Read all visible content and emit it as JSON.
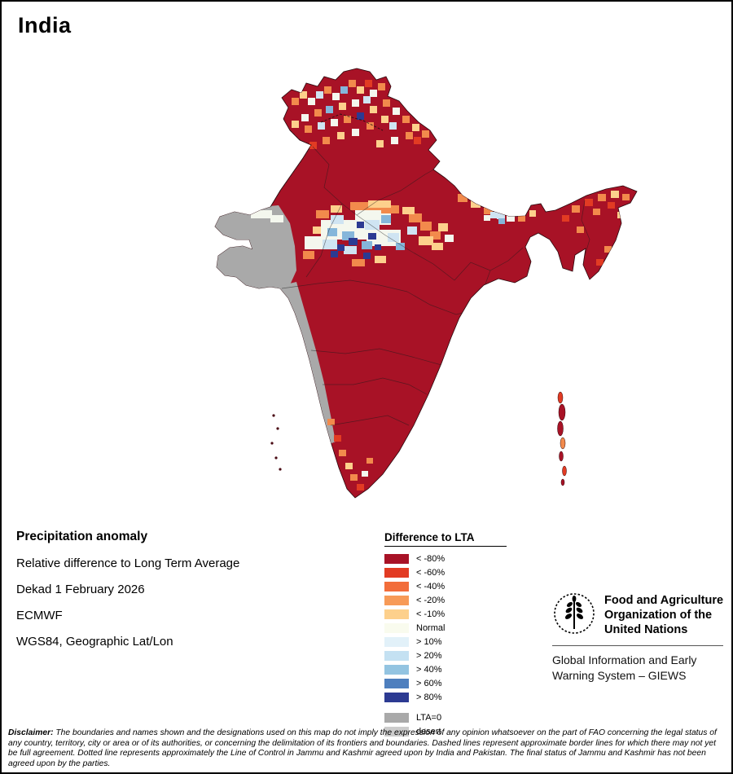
{
  "page": {
    "title": "India"
  },
  "info": {
    "heading": "Precipitation anomaly",
    "lines": [
      "Relative difference to Long Term Average",
      "Dekad 1 February 2026",
      "ECMWF",
      "WGS84, Geographic Lat/Lon"
    ]
  },
  "legend": {
    "title": "Difference to LTA",
    "items": [
      {
        "label": "< -80%",
        "color": "#a81226"
      },
      {
        "label": "< -60%",
        "color": "#e23b23"
      },
      {
        "label": "< -40%",
        "color": "#f26d3a"
      },
      {
        "label": "< -20%",
        "color": "#f79a57"
      },
      {
        "label": "< -10%",
        "color": "#fdd08c"
      },
      {
        "label": "Normal",
        "color": "#f9fbee"
      },
      {
        "label": "> 10%",
        "color": "#e2f1f9"
      },
      {
        "label": "> 20%",
        "color": "#c4e1f2"
      },
      {
        "label": "> 40%",
        "color": "#93c4e1"
      },
      {
        "label": "> 60%",
        "color": "#4e7fbe"
      },
      {
        "label": "> 80%",
        "color": "#2c3a92"
      },
      {
        "label": "LTA=0",
        "color": "#a9a9a9",
        "gap_before": true
      },
      {
        "label": "desert",
        "color": "#cccccc"
      }
    ]
  },
  "fao": {
    "org_lines": [
      "Food and Agriculture",
      "Organization of the",
      "United Nations"
    ],
    "giews_lines": [
      "Global Information and Early",
      "Warning System – GIEWS"
    ]
  },
  "disclaimer": {
    "label": "Disclaimer:",
    "text": " The boundaries and names shown and the designations used on this map do not imply the expression of any opinion whatsoever on the part of FAO concerning the legal status of any country, territory, city or area or of its authorities, or concerning the delimitation of its frontiers and boundaries. Dashed lines represent approximate border lines for which there may not yet be full agreement. Dotted line represents approximately the Line of Control in Jammu and Kashmir agreed upon by India and Pakistan. The final status of Jammu and Kashmir has not been agreed upon by the parties."
  },
  "map": {
    "region": "India",
    "base_color": "#a81226",
    "gray_color": "#a9a9a9",
    "palette": {
      "B": "#a81226",
      "W": "#f4f7ee",
      "Y": "#fdd08c",
      "O": "#f28a4c",
      "R": "#e23b23",
      "LB": "#cfe4f2",
      "MB": "#85b6da",
      "DB": "#2c3a92",
      "G": "#a9a9a9"
    },
    "patches": [
      [
        356,
        118,
        9,
        9,
        "O"
      ],
      [
        366,
        110,
        9,
        9,
        "Y"
      ],
      [
        376,
        118,
        9,
        9,
        "W"
      ],
      [
        386,
        110,
        9,
        9,
        "LB"
      ],
      [
        396,
        104,
        9,
        9,
        "O"
      ],
      [
        406,
        112,
        9,
        9,
        "W"
      ],
      [
        416,
        104,
        9,
        9,
        "MB"
      ],
      [
        426,
        96,
        9,
        9,
        "O"
      ],
      [
        436,
        104,
        9,
        9,
        "Y"
      ],
      [
        446,
        96,
        9,
        9,
        "R"
      ],
      [
        452,
        108,
        9,
        9,
        "W"
      ],
      [
        462,
        100,
        9,
        9,
        "O"
      ],
      [
        444,
        116,
        9,
        9,
        "LB"
      ],
      [
        430,
        120,
        9,
        9,
        "W"
      ],
      [
        414,
        124,
        9,
        9,
        "Y"
      ],
      [
        398,
        128,
        9,
        9,
        "MB"
      ],
      [
        384,
        132,
        9,
        9,
        "O"
      ],
      [
        368,
        138,
        9,
        9,
        "W"
      ],
      [
        356,
        146,
        9,
        9,
        "Y"
      ],
      [
        372,
        152,
        9,
        9,
        "O"
      ],
      [
        388,
        148,
        9,
        9,
        "LB"
      ],
      [
        404,
        144,
        9,
        9,
        "W"
      ],
      [
        420,
        140,
        9,
        9,
        "O"
      ],
      [
        436,
        136,
        9,
        9,
        "DB"
      ],
      [
        452,
        128,
        9,
        9,
        "Y"
      ],
      [
        468,
        120,
        9,
        9,
        "O"
      ],
      [
        480,
        130,
        9,
        9,
        "W"
      ],
      [
        466,
        140,
        9,
        9,
        "Y"
      ],
      [
        448,
        148,
        9,
        9,
        "O"
      ],
      [
        430,
        156,
        9,
        9,
        "W"
      ],
      [
        412,
        160,
        9,
        9,
        "Y"
      ],
      [
        394,
        166,
        9,
        9,
        "O"
      ],
      [
        378,
        172,
        9,
        9,
        "R"
      ],
      [
        362,
        178,
        9,
        9,
        "O"
      ],
      [
        476,
        148,
        9,
        9,
        "LB"
      ],
      [
        492,
        140,
        9,
        9,
        "O"
      ],
      [
        504,
        150,
        9,
        9,
        "Y"
      ],
      [
        496,
        160,
        9,
        9,
        "O"
      ],
      [
        478,
        166,
        9,
        9,
        "W"
      ],
      [
        460,
        170,
        9,
        9,
        "Y"
      ],
      [
        506,
        166,
        9,
        9,
        "R"
      ],
      [
        516,
        158,
        9,
        9,
        "O"
      ],
      [
        392,
        268,
        58,
        24,
        "W"
      ],
      [
        434,
        256,
        44,
        18,
        "W"
      ],
      [
        448,
        280,
        42,
        20,
        "W"
      ],
      [
        372,
        288,
        30,
        16,
        "W"
      ],
      [
        404,
        262,
        16,
        11,
        "LB"
      ],
      [
        446,
        268,
        18,
        12,
        "LB"
      ],
      [
        394,
        292,
        18,
        12,
        "LB"
      ],
      [
        474,
        284,
        14,
        11,
        "LB"
      ],
      [
        498,
        276,
        12,
        10,
        "LB"
      ],
      [
        420,
        300,
        16,
        10,
        "LB"
      ],
      [
        418,
        282,
        15,
        11,
        "MB"
      ],
      [
        442,
        294,
        13,
        10,
        "MB"
      ],
      [
        466,
        262,
        12,
        10,
        "MB"
      ],
      [
        400,
        278,
        12,
        10,
        "MB"
      ],
      [
        484,
        296,
        11,
        9,
        "MB"
      ],
      [
        426,
        290,
        11,
        9,
        "DB"
      ],
      [
        412,
        298,
        9,
        8,
        "DB"
      ],
      [
        450,
        284,
        10,
        8,
        "DB"
      ],
      [
        436,
        270,
        9,
        8,
        "DB"
      ],
      [
        458,
        298,
        8,
        7,
        "DB"
      ],
      [
        404,
        306,
        9,
        8,
        "DB"
      ],
      [
        444,
        308,
        9,
        8,
        "DB"
      ],
      [
        428,
        246,
        38,
        10,
        "O"
      ],
      [
        466,
        250,
        22,
        10,
        "O"
      ],
      [
        500,
        260,
        16,
        11,
        "O"
      ],
      [
        514,
        270,
        14,
        11,
        "O"
      ],
      [
        526,
        282,
        13,
        10,
        "O"
      ],
      [
        386,
        256,
        16,
        10,
        "O"
      ],
      [
        370,
        306,
        14,
        10,
        "O"
      ],
      [
        430,
        316,
        16,
        9,
        "O"
      ],
      [
        450,
        244,
        28,
        9,
        "Y"
      ],
      [
        492,
        252,
        15,
        9,
        "Y"
      ],
      [
        512,
        288,
        18,
        11,
        "Y"
      ],
      [
        528,
        296,
        14,
        9,
        "Y"
      ],
      [
        404,
        250,
        14,
        9,
        "Y"
      ],
      [
        382,
        276,
        10,
        9,
        "Y"
      ],
      [
        458,
        312,
        14,
        9,
        "Y"
      ],
      [
        536,
        272,
        12,
        10,
        "Y"
      ],
      [
        544,
        286,
        11,
        9,
        "W"
      ],
      [
        560,
        236,
        12,
        10,
        "O"
      ],
      [
        576,
        244,
        12,
        9,
        "Y"
      ],
      [
        592,
        252,
        11,
        9,
        "O"
      ],
      [
        608,
        258,
        10,
        9,
        "LB"
      ],
      [
        620,
        262,
        10,
        8,
        "W"
      ],
      [
        634,
        262,
        9,
        8,
        "O"
      ],
      [
        648,
        256,
        8,
        8,
        "Y"
      ],
      [
        700,
        250,
        10,
        9,
        "O"
      ],
      [
        716,
        242,
        10,
        9,
        "R"
      ],
      [
        732,
        236,
        10,
        9,
        "O"
      ],
      [
        748,
        232,
        10,
        9,
        "Y"
      ],
      [
        762,
        236,
        9,
        8,
        "O"
      ],
      [
        744,
        246,
        9,
        8,
        "R"
      ],
      [
        726,
        254,
        9,
        8,
        "O"
      ],
      [
        756,
        258,
        9,
        8,
        "Y"
      ],
      [
        740,
        300,
        9,
        8,
        "O"
      ],
      [
        730,
        316,
        9,
        8,
        "R"
      ],
      [
        706,
        276,
        9,
        8,
        "O"
      ],
      [
        688,
        262,
        9,
        8,
        "R"
      ],
      [
        600,
        258,
        9,
        8,
        "LB"
      ],
      [
        610,
        266,
        8,
        7,
        "MB"
      ],
      [
        592,
        262,
        8,
        7,
        "W"
      ],
      [
        650,
        292,
        10,
        9,
        "O"
      ],
      [
        658,
        302,
        9,
        8,
        "Y"
      ],
      [
        400,
        512,
        9,
        8,
        "O"
      ],
      [
        408,
        532,
        9,
        8,
        "R"
      ],
      [
        414,
        550,
        9,
        8,
        "O"
      ],
      [
        422,
        566,
        9,
        8,
        "Y"
      ],
      [
        428,
        580,
        9,
        8,
        "O"
      ],
      [
        436,
        592,
        9,
        8,
        "R"
      ],
      [
        442,
        576,
        8,
        7,
        "W"
      ],
      [
        448,
        560,
        8,
        7,
        "O"
      ],
      [
        306,
        256,
        26,
        10,
        "W"
      ],
      [
        330,
        262,
        16,
        9,
        "W"
      ]
    ],
    "islands": {
      "andaman": [
        [
          686,
          486,
          3,
          7,
          "R"
        ],
        [
          688,
          504,
          4,
          10,
          "B"
        ],
        [
          686,
          524,
          3.5,
          9,
          "B"
        ],
        [
          689,
          542,
          3,
          7,
          "O"
        ],
        [
          687,
          558,
          2.5,
          6,
          "B"
        ],
        [
          691,
          576,
          2.5,
          6,
          "R"
        ],
        [
          689,
          590,
          2,
          4,
          "B"
        ]
      ],
      "lakshadweep": [
        [
          334,
          508
        ],
        [
          339,
          524
        ],
        [
          332,
          542
        ],
        [
          337,
          560
        ],
        [
          342,
          574
        ]
      ]
    }
  }
}
